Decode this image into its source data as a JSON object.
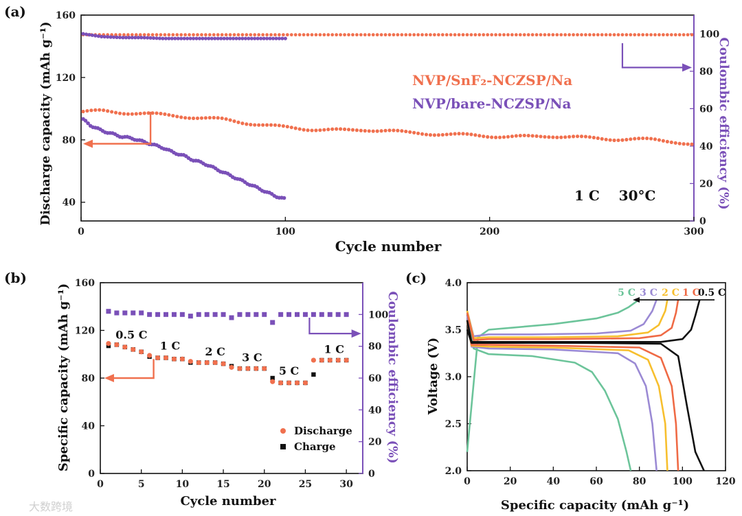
{
  "watermark": "大数跨境",
  "colors": {
    "snf2": "#f0704e",
    "bare": "#7a50b8",
    "arrow_orange": "#f0704e",
    "arrow_purple": "#7a50b8",
    "discharge": "#f0704e",
    "charge": "#111111",
    "rate_5C": "#6cc49a",
    "rate_3C": "#9b8ad4",
    "rate_2C": "#f7bf2e",
    "rate_1C": "#ef6a45",
    "rate_05C": "#111111"
  },
  "chart_data": [
    {
      "panel": "(a)",
      "type": "scatter",
      "xlabel": "Cycle number",
      "ylabel": "Discharge capacity (mAh g⁻¹)",
      "y2label": "Coulombic efficiency (%)",
      "xlim": [
        0,
        300
      ],
      "ylim": [
        28,
        160
      ],
      "y2lim": [
        0,
        110
      ],
      "xticks": [
        0,
        100,
        200,
        300
      ],
      "yticks": [
        40,
        80,
        120,
        160
      ],
      "y2ticks": [
        0,
        20,
        40,
        60,
        80,
        100
      ],
      "annotation": "1 C    30°C",
      "legend": [
        "NVP/SnF₂-NCZSP/Na",
        "NVP/bare-NCZSP/Na"
      ],
      "legend_placement": "upper-right",
      "series": [
        {
          "name": "NVP/SnF₂-NCZSP/Na",
          "axis": "capacity",
          "x": [
            1,
            10,
            20,
            30,
            40,
            50,
            60,
            70,
            80,
            90,
            100,
            110,
            120,
            130,
            140,
            150,
            160,
            170,
            180,
            190,
            200,
            210,
            220,
            230,
            240,
            250,
            260,
            270,
            280,
            290,
            300
          ],
          "y": [
            98,
            98.5,
            97.5,
            97,
            96,
            95,
            94,
            93,
            91,
            89.5,
            88,
            87,
            86.5,
            86,
            86.5,
            86,
            84.5,
            84,
            83.5,
            83,
            82.5,
            82,
            82,
            82.5,
            82,
            81,
            80.5,
            80.5,
            80,
            79,
            77
          ]
        },
        {
          "name": "NVP/SnF₂-NCZSP/Na CE",
          "axis": "efficiency",
          "x": [
            1,
            50,
            100,
            150,
            200,
            250,
            300
          ],
          "y": [
            99.5,
            99.5,
            99.5,
            99.5,
            99.5,
            99.5,
            99.5
          ]
        },
        {
          "name": "NVP/bare-NCZSP/Na",
          "axis": "capacity",
          "x": [
            1,
            5,
            10,
            15,
            20,
            25,
            30,
            35,
            40,
            45,
            50,
            55,
            60,
            65,
            70,
            75,
            80,
            85,
            90,
            95,
            100
          ],
          "y": [
            93,
            89,
            86,
            84,
            82,
            81,
            79,
            77,
            75,
            72,
            70,
            67,
            65,
            62,
            59,
            56,
            53,
            50,
            47,
            44,
            42
          ]
        },
        {
          "name": "NVP/bare-NCZSP/Na CE",
          "axis": "efficiency",
          "x": [
            1,
            10,
            20,
            30,
            40,
            50,
            60,
            70,
            80,
            90,
            100
          ],
          "y": [
            100,
            98.5,
            98,
            98,
            97.5,
            97.5,
            97.5,
            97.5,
            97.5,
            97.5,
            97.5
          ]
        }
      ]
    },
    {
      "panel": "(b)",
      "type": "scatter",
      "xlabel": "Cycle number",
      "ylabel": "Specific capacity (mAh g⁻¹)",
      "y2label": "Coulombic efficiency (%)",
      "xlim": [
        0,
        32
      ],
      "ylim": [
        0,
        160
      ],
      "y2lim": [
        0,
        120
      ],
      "xticks": [
        0,
        5,
        10,
        15,
        20,
        25,
        30
      ],
      "yticks": [
        0,
        40,
        80,
        120,
        160
      ],
      "y2ticks": [
        0,
        20,
        40,
        60,
        80,
        100
      ],
      "rate_labels": [
        {
          "text": "0.5 C",
          "x": 3.8,
          "y": 113
        },
        {
          "text": "1 C",
          "x": 8.5,
          "y": 104
        },
        {
          "text": "2 C",
          "x": 14,
          "y": 99
        },
        {
          "text": "3 C",
          "x": 18.5,
          "y": 94
        },
        {
          "text": "5 C",
          "x": 23,
          "y": 83
        },
        {
          "text": "1 C",
          "x": 28.5,
          "y": 101
        }
      ],
      "legend": [
        "Discharge",
        "Charge"
      ],
      "legend_placement": "lower-right",
      "x": [
        1,
        2,
        3,
        4,
        5,
        6,
        7,
        8,
        9,
        10,
        11,
        12,
        13,
        14,
        15,
        16,
        17,
        18,
        19,
        20,
        21,
        22,
        23,
        24,
        25,
        26,
        27,
        28,
        29,
        30
      ],
      "series": [
        {
          "name": "Discharge",
          "axis": "capacity",
          "values": [
            109,
            108,
            106,
            104,
            102,
            99,
            97,
            97,
            96,
            96,
            94,
            93,
            93,
            93,
            92,
            89,
            88,
            88,
            88,
            88,
            77,
            76,
            76,
            76,
            76,
            95,
            95,
            95,
            95,
            95
          ]
        },
        {
          "name": "Charge",
          "axis": "capacity",
          "values": [
            107,
            108,
            106,
            104,
            102,
            98,
            97,
            97,
            96,
            96,
            93,
            93,
            93,
            93,
            92,
            90,
            88,
            88,
            88,
            88,
            80,
            76,
            76,
            76,
            76,
            83,
            95,
            95,
            95,
            95
          ]
        },
        {
          "name": "Coulombic efficiency",
          "axis": "efficiency",
          "values": [
            102,
            101,
            101,
            101,
            101,
            100,
            100,
            100,
            100,
            100,
            99,
            100,
            100,
            100,
            100,
            98,
            100,
            100,
            100,
            100,
            95,
            100,
            100,
            100,
            100,
            100,
            100,
            100,
            100,
            100
          ]
        }
      ]
    },
    {
      "panel": "(c)",
      "type": "line",
      "xlabel": "Specific capacity (mAh g⁻¹)",
      "ylabel": "Voltage (V)",
      "xlim": [
        0,
        120
      ],
      "ylim": [
        2.0,
        4.0
      ],
      "xticks": [
        0,
        20,
        40,
        60,
        80,
        100,
        120
      ],
      "yticks": [
        2.0,
        2.5,
        3.0,
        3.5,
        4.0
      ],
      "legend": [
        "5 C",
        "3 C",
        "2 C",
        "1 C",
        "0.5 C"
      ],
      "legend_placement": "top-right",
      "series": [
        {
          "name": "5 C",
          "color_key": "rate_5C",
          "charge": {
            "x": [
              0,
              5,
              10,
              20,
              40,
              60,
              70,
              75,
              78,
              80
            ],
            "y": [
              2.2,
              3.42,
              3.5,
              3.52,
              3.56,
              3.62,
              3.68,
              3.74,
              3.79,
              3.82
            ]
          },
          "discharge": {
            "x": [
              0,
              3,
              10,
              30,
              50,
              58,
              64,
              70,
              74,
              76
            ],
            "y": [
              3.7,
              3.3,
              3.24,
              3.22,
              3.15,
              3.05,
              2.85,
              2.55,
              2.2,
              2.0
            ]
          }
        },
        {
          "name": "3 C",
          "color_key": "rate_3C",
          "charge": {
            "x": [
              0,
              3,
              10,
              30,
              60,
              76,
              82,
              86,
              88
            ],
            "y": [
              3.7,
              3.43,
              3.45,
              3.45,
              3.46,
              3.49,
              3.56,
              3.7,
              3.82
            ]
          },
          "discharge": {
            "x": [
              0,
              2,
              10,
              40,
              70,
              78,
              83,
              86,
              88
            ],
            "y": [
              3.65,
              3.32,
              3.3,
              3.29,
              3.25,
              3.14,
              2.9,
              2.5,
              2.0
            ]
          }
        },
        {
          "name": "2 C",
          "color_key": "rate_2C",
          "charge": {
            "x": [
              0,
              3,
              10,
              40,
              70,
              84,
              89,
              92,
              93
            ],
            "y": [
              3.7,
              3.41,
              3.42,
              3.42,
              3.43,
              3.47,
              3.55,
              3.7,
              3.82
            ]
          },
          "discharge": {
            "x": [
              0,
              2,
              10,
              40,
              75,
              84,
              89,
              92,
              93
            ],
            "y": [
              3.6,
              3.33,
              3.32,
              3.31,
              3.28,
              3.18,
              2.9,
              2.5,
              2.0
            ]
          }
        },
        {
          "name": "1 C",
          "color_key": "rate_1C",
          "charge": {
            "x": [
              0,
              3,
              10,
              40,
              80,
              90,
              95,
              97,
              98
            ],
            "y": [
              3.68,
              3.39,
              3.4,
              3.4,
              3.41,
              3.44,
              3.52,
              3.68,
              3.82
            ]
          },
          "discharge": {
            "x": [
              0,
              2,
              10,
              40,
              80,
              90,
              95,
              97,
              98
            ],
            "y": [
              3.6,
              3.34,
              3.34,
              3.33,
              3.31,
              3.2,
              2.9,
              2.5,
              2.0
            ]
          }
        },
        {
          "name": "0.5 C",
          "color_key": "rate_05C",
          "charge": {
            "x": [
              0,
              2,
              10,
              50,
              90,
              100,
              104,
              106,
              108
            ],
            "y": [
              3.6,
              3.37,
              3.37,
              3.37,
              3.37,
              3.4,
              3.5,
              3.65,
              3.82
            ]
          },
          "discharge": {
            "x": [
              0,
              2,
              10,
              50,
              90,
              98,
              102,
              106,
              110
            ],
            "y": [
              3.5,
              3.36,
              3.36,
              3.36,
              3.35,
              3.22,
              2.7,
              2.2,
              2.0
            ]
          }
        }
      ]
    }
  ]
}
